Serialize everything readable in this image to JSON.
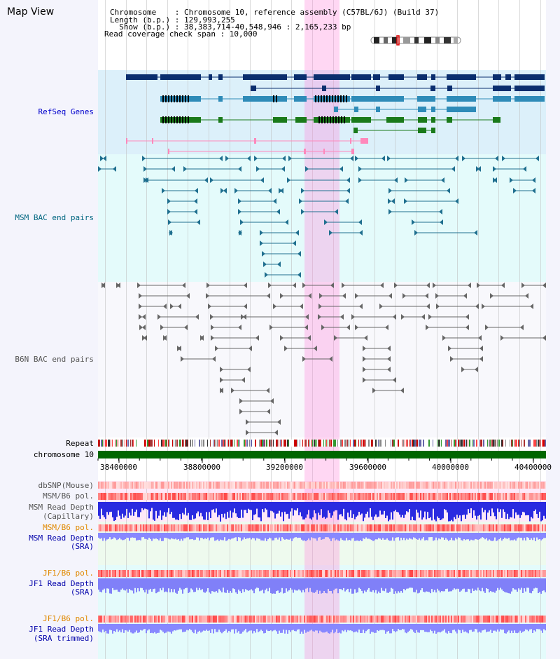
{
  "header": {
    "title": "Map View",
    "chromosome_label": "Chromosome    : Chromosome 10, reference assembly (C57BL/6J) (Build 37)",
    "length_label": "Length (b.p.) : 129,993,255",
    "show_label": "  Show (b.p.) : 38,383,714-40,548,946 : 2,165,233 bp",
    "coverage_label": "Read coverage check span : 10,000"
  },
  "tracks": {
    "refseq": "RefSeq Genes",
    "msm_bac": "MSM BAC end pairs",
    "b6n_bac": "B6N BAC end pairs",
    "repeat": "Repeat",
    "chromosome": "chromosome 10",
    "dbsnp": "dbSNP(Mouse)",
    "msm_b6_pol_1": "MSM/B6 pol.",
    "msm_read_depth_cap": "MSM Read Depth",
    "msm_read_depth_cap_sub": "(Capillary)",
    "msm_b6_pol_2": "MSM/B6 pol.",
    "msm_read_depth_sra": "MSM Read Depth",
    "msm_read_depth_sra_sub": "(SRA)",
    "jf1_b6_pol_1": "JF1/B6 pol.",
    "jf1_read_depth": "JF1 Read Depth",
    "jf1_read_depth_sub": "(SRA)",
    "jf1_b6_pol_2": "JF1/B6 pol.",
    "jf1_read_depth_trim": "JF1 Read Depth",
    "jf1_read_depth_trim_sub": "(SRA trimmed)"
  },
  "axis": {
    "ticks": [
      "38400000",
      "38800000",
      "39200000",
      "39600000",
      "40000000",
      "40400000"
    ]
  },
  "colors": {
    "refseq_label": "#0000cc",
    "msm_label": "#006680",
    "b6n_label": "#555555",
    "pol_label": "#e08800",
    "depth_label": "#0000aa",
    "highlight": "#ffb4e6",
    "chromosome_bar": "#006600"
  }
}
